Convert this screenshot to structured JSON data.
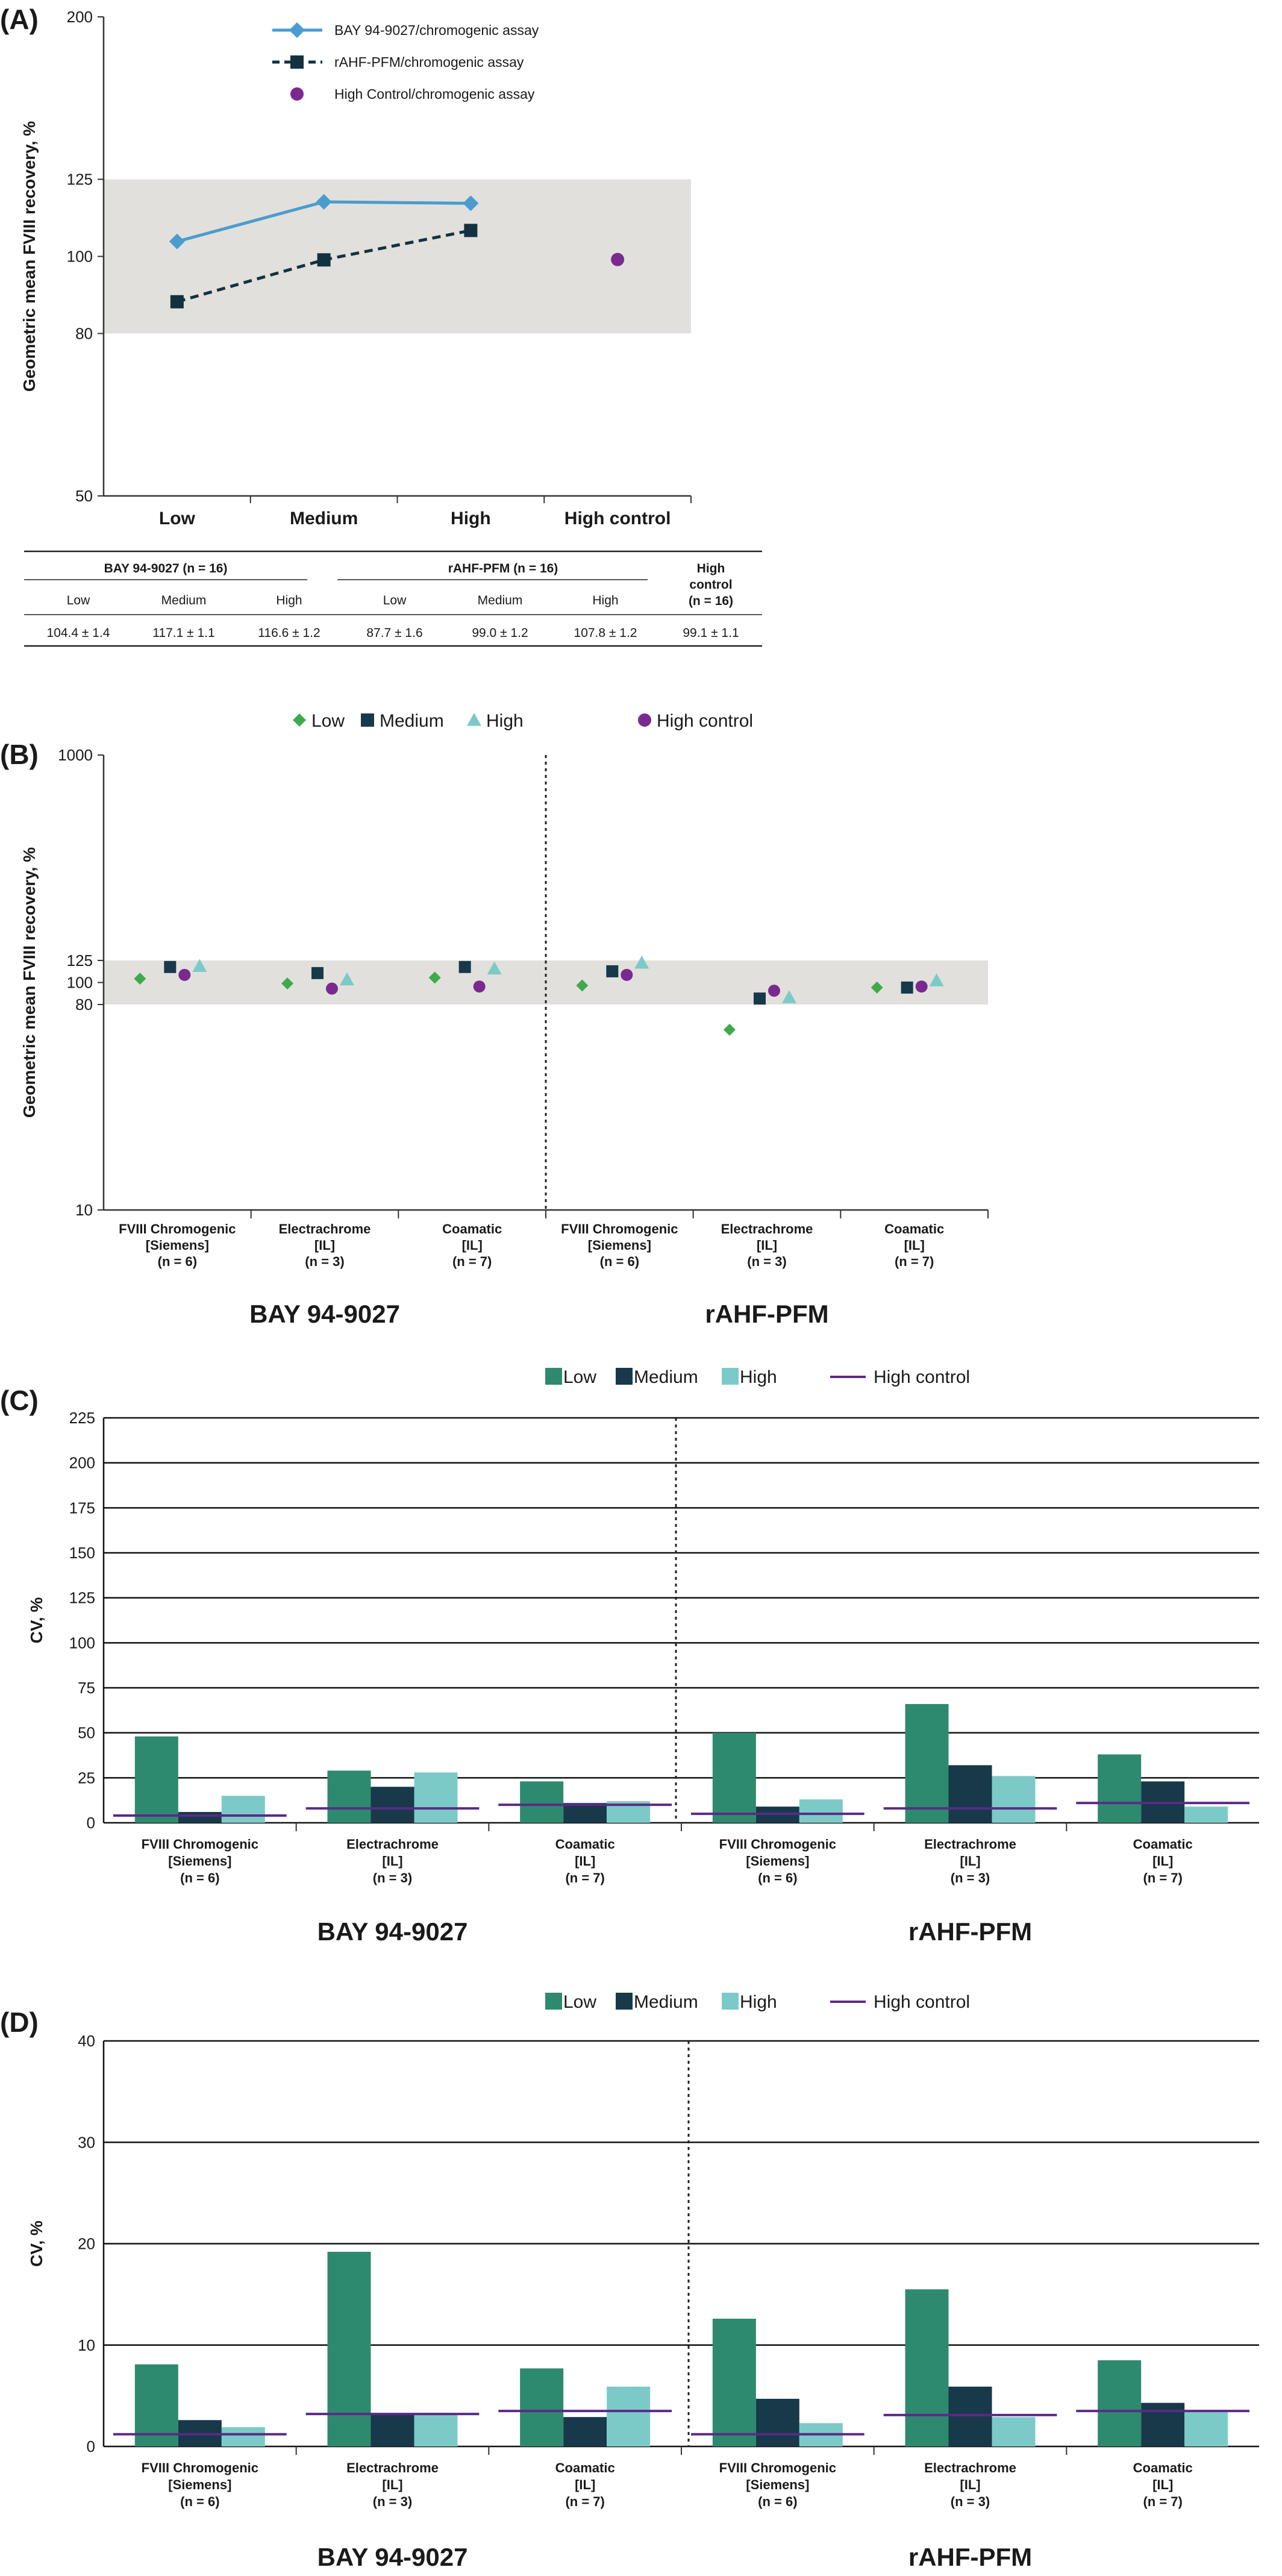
{
  "colors": {
    "band": "#e2e0dc",
    "bay_line": "#4a9ccf",
    "rahf_line": "#13323f",
    "high_control_dot": "#7a2a8f",
    "low": "#2e8a6e",
    "medium": "#17394a",
    "high": "#7ccac8",
    "low_marker": "#3dab4a",
    "high_control_line": "#5b2a86"
  },
  "chart_data": [
    {
      "panel": "(A)",
      "type": "line",
      "ylabel": "Geometric mean FVIII recovery, %",
      "yscale": "log",
      "ylim": [
        50,
        200
      ],
      "yticks": [
        "50",
        "80",
        "100",
        "125",
        "200"
      ],
      "band": [
        80,
        125
      ],
      "categories": [
        "Low",
        "Medium",
        "High",
        "High control"
      ],
      "legend": [
        {
          "label": "BAY 94-9027/chromogenic assay",
          "marker": "diamond-line"
        },
        {
          "label": "rAHF-PFM/chromogenic assay",
          "marker": "square-dashed"
        },
        {
          "label": "High Control/chromogenic assay",
          "marker": "circle"
        }
      ],
      "series": [
        {
          "name": "BAY 94-9027/chromogenic assay",
          "values": [
            104.4,
            117.1,
            116.6,
            null
          ]
        },
        {
          "name": "rAHF-PFM/chromogenic assay",
          "values": [
            87.7,
            99.0,
            107.8,
            null
          ]
        },
        {
          "name": "High Control/chromogenic assay",
          "values": [
            null,
            null,
            null,
            99.1
          ]
        }
      ],
      "table": {
        "groups": [
          "BAY 94-9027 (n = 16)",
          "rAHF-PFM (n = 16)",
          "High control (n = 16)"
        ],
        "headers": [
          "Low",
          "Medium",
          "High",
          "Low",
          "Medium",
          "High"
        ],
        "values": [
          "104.4 ± 1.4",
          "117.1 ± 1.1",
          "116.6 ± 1.2",
          "87.7 ± 1.6",
          "99.0 ± 1.2",
          "107.8 ± 1.2",
          "99.1 ± 1.1"
        ]
      }
    },
    {
      "panel": "(B)",
      "type": "scatter",
      "ylabel": "Geometric mean FVIII recovery, %",
      "yscale": "log",
      "ylim": [
        10,
        1000
      ],
      "yticks": [
        "10",
        "80",
        "100",
        "125",
        "1000"
      ],
      "band": [
        80,
        125
      ],
      "legend": [
        "Low",
        "Medium",
        "High",
        "High control"
      ],
      "groups": [
        "BAY 94-9027",
        "rAHF-PFM"
      ],
      "categories": [
        [
          "FVIII Chromogenic",
          "[Siemens]",
          "(n = 6)"
        ],
        [
          "Electrachrome",
          "[IL]",
          "(n = 3)"
        ],
        [
          "Coamatic",
          "[IL]",
          "(n = 7)"
        ],
        [
          "FVIII Chromogenic",
          "[Siemens]",
          "(n = 6)"
        ],
        [
          "Electrachrome",
          "[IL]",
          "(n = 3)"
        ],
        [
          "Coamatic",
          "[IL]",
          "(n = 7)"
        ]
      ],
      "series": [
        {
          "name": "Low",
          "values": [
            104,
            99,
            105,
            97,
            62,
            95
          ]
        },
        {
          "name": "Medium",
          "values": [
            117,
            110,
            117,
            112,
            85,
            95
          ]
        },
        {
          "name": "High",
          "values": [
            118,
            103,
            115,
            122,
            86,
            102
          ]
        },
        {
          "name": "High control",
          "values": [
            108,
            94,
            96,
            108,
            92,
            96
          ]
        }
      ]
    },
    {
      "panel": "(C)",
      "type": "bar",
      "ylabel": "CV, %",
      "ylim": [
        0,
        225
      ],
      "yticks": [
        0,
        25,
        50,
        75,
        100,
        125,
        150,
        175,
        200,
        225
      ],
      "legend": [
        "Low",
        "Medium",
        "High",
        "High control"
      ],
      "groups": [
        "BAY 94-9027",
        "rAHF-PFM"
      ],
      "categories": [
        [
          "FVIII Chromogenic",
          "[Siemens]",
          "(n = 6)"
        ],
        [
          "Electrachrome",
          "[IL]",
          "(n = 3)"
        ],
        [
          "Coamatic",
          "[IL]",
          "(n = 7)"
        ],
        [
          "FVIII Chromogenic",
          "[Siemens]",
          "(n = 6)"
        ],
        [
          "Electrachrome",
          "[IL]",
          "(n = 3)"
        ],
        [
          "Coamatic",
          "[IL]",
          "(n = 7)"
        ]
      ],
      "series": [
        {
          "name": "Low",
          "values": [
            48,
            29,
            23,
            50,
            66,
            38
          ]
        },
        {
          "name": "Medium",
          "values": [
            6,
            20,
            11,
            9,
            32,
            23
          ]
        },
        {
          "name": "High",
          "values": [
            15,
            28,
            12,
            13,
            26,
            9
          ]
        },
        {
          "name": "High control",
          "values": [
            4,
            8,
            10,
            5,
            8,
            11
          ]
        }
      ]
    },
    {
      "panel": "(D)",
      "type": "bar",
      "ylabel": "CV, %",
      "ylim": [
        0,
        40
      ],
      "yticks": [
        0,
        10,
        20,
        30,
        40
      ],
      "legend": [
        "Low",
        "Medium",
        "High",
        "High control"
      ],
      "groups": [
        "BAY 94-9027",
        "rAHF-PFM"
      ],
      "categories": [
        [
          "FVIII Chromogenic",
          "[Siemens]",
          "(n = 6)"
        ],
        [
          "Electrachrome",
          "[IL]",
          "(n = 3)"
        ],
        [
          "Coamatic",
          "[IL]",
          "(n = 7)"
        ],
        [
          "FVIII Chromogenic",
          "[Siemens]",
          "(n = 6)"
        ],
        [
          "Electrachrome",
          "[IL]",
          "(n = 3)"
        ],
        [
          "Coamatic",
          "[IL]",
          "(n = 7)"
        ]
      ],
      "series": [
        {
          "name": "Low",
          "values": [
            8.1,
            19.2,
            7.7,
            12.6,
            15.5,
            8.5
          ]
        },
        {
          "name": "Medium",
          "values": [
            2.6,
            3.2,
            2.9,
            4.7,
            5.9,
            4.3
          ]
        },
        {
          "name": "High",
          "values": [
            1.9,
            3.1,
            5.9,
            2.3,
            2.9,
            3.4
          ]
        },
        {
          "name": "High control",
          "values": [
            1.2,
            3.2,
            3.5,
            1.2,
            3.1,
            3.5
          ]
        }
      ]
    }
  ]
}
